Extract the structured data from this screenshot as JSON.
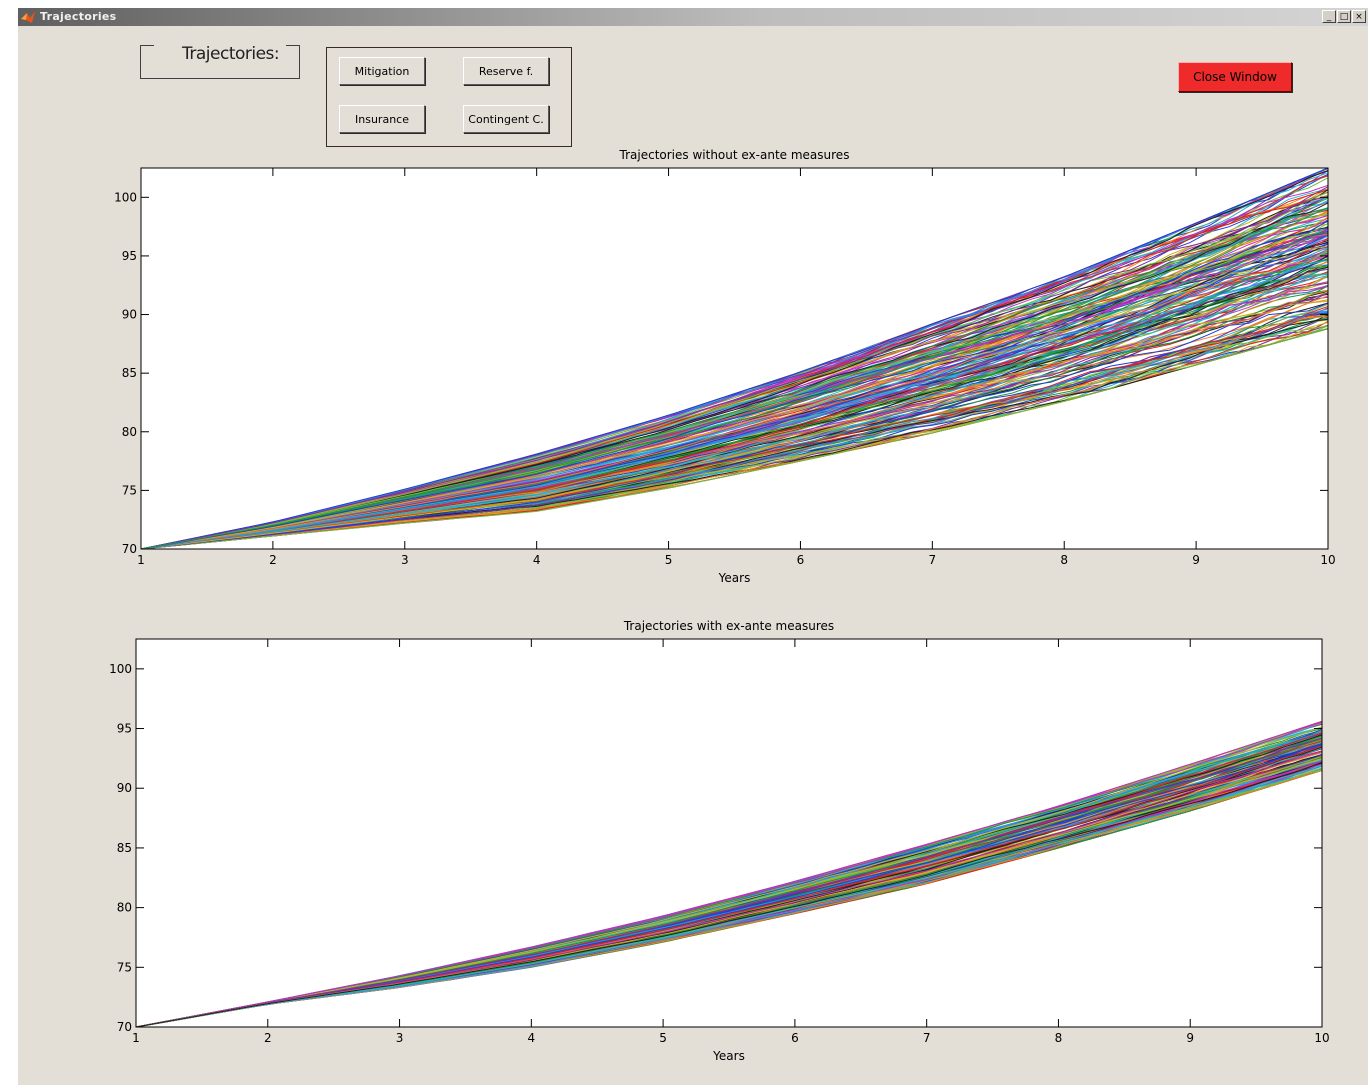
{
  "window": {
    "title": "Trajectories",
    "controls": {
      "minimize": "_",
      "maximize": "□",
      "close": "×"
    }
  },
  "frame_label": "Trajectories:",
  "buttons": {
    "mitigation": "Mitigation",
    "reserve": "Reserve f.",
    "insurance": "Insurance",
    "contingent": "Contingent C.",
    "close_window": "Close Window"
  },
  "colors": {
    "window_bg": "#e3ded6",
    "close_button": "#ee2a2a",
    "series_palette": [
      "#1f3fd0",
      "#1a9a3a",
      "#e02020",
      "#20b8c8",
      "#c030c0",
      "#c8b020",
      "#202020",
      "#f08020",
      "#70c040",
      "#8030a0",
      "#3090e0"
    ]
  },
  "icons": {
    "app": "matlab-logo-icon"
  },
  "chart_data": [
    {
      "type": "line",
      "title": "Trajectories without ex-ante measures",
      "xlabel": "Years",
      "ylabel": "",
      "xlim": [
        1,
        10
      ],
      "ylim": [
        70,
        102.5
      ],
      "xticks": [
        1,
        2,
        3,
        4,
        5,
        6,
        7,
        8,
        9,
        10
      ],
      "yticks": [
        70,
        75,
        80,
        85,
        90,
        95,
        100
      ],
      "ytick_labels": [
        "70",
        "75",
        "80",
        "85",
        "90",
        "95",
        "100"
      ],
      "grid": false,
      "trajectories": 200,
      "x": [
        1,
        2,
        3,
        4,
        5,
        6,
        7,
        8,
        9,
        10
      ],
      "envelope_upper": [
        70,
        72.3,
        75.1,
        78.1,
        81.4,
        85.1,
        89.2,
        93.2,
        97.8,
        102.5
      ],
      "envelope_median": [
        70,
        71.8,
        74.0,
        76.8,
        79.6,
        82.6,
        85.8,
        89.4,
        93.0,
        96.8
      ],
      "envelope_lower": [
        70,
        71.1,
        72.2,
        73.2,
        75.2,
        77.5,
        79.9,
        82.6,
        85.7,
        88.8
      ]
    },
    {
      "type": "line",
      "title": "Trajectories with ex-ante measures",
      "xlabel": "Years",
      "ylabel": "",
      "xlim": [
        1,
        10
      ],
      "ylim": [
        70,
        102.5
      ],
      "xticks": [
        1,
        2,
        3,
        4,
        5,
        6,
        7,
        8,
        9,
        10
      ],
      "yticks": [
        70,
        75,
        80,
        85,
        90,
        95,
        100
      ],
      "ytick_labels": [
        "70",
        "75",
        "80",
        "85",
        "90",
        "95",
        "100"
      ],
      "grid": false,
      "trajectories": 150,
      "x": [
        1,
        2,
        3,
        4,
        5,
        6,
        7,
        8,
        9,
        10
      ],
      "envelope_upper": [
        70,
        72.1,
        74.3,
        76.7,
        79.3,
        82.2,
        85.3,
        88.5,
        92.0,
        95.6
      ],
      "envelope_median": [
        70,
        72.0,
        73.9,
        76.2,
        78.6,
        81.4,
        84.3,
        87.4,
        90.6,
        94.0
      ],
      "envelope_lower": [
        70,
        71.9,
        73.3,
        75.0,
        77.1,
        79.5,
        82.0,
        85.0,
        88.1,
        91.5
      ]
    }
  ]
}
